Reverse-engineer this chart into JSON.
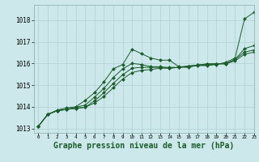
{
  "background_color": "#cce8ea",
  "plot_bg_color": "#cce8ea",
  "grid_color": "#b0d0d2",
  "line_color": "#1a5c2a",
  "xlabel": "Graphe pression niveau de la mer (hPa)",
  "xlabel_fontsize": 7,
  "ylim": [
    1012.8,
    1018.7
  ],
  "xlim": [
    -0.5,
    23
  ],
  "yticks": [
    1013,
    1014,
    1015,
    1016,
    1017,
    1018
  ],
  "xticks": [
    0,
    1,
    2,
    3,
    4,
    5,
    6,
    7,
    8,
    9,
    10,
    11,
    12,
    13,
    14,
    15,
    16,
    17,
    18,
    19,
    20,
    21,
    22,
    23
  ],
  "series": [
    [
      1013.1,
      1013.65,
      1013.85,
      1013.95,
      1014.0,
      1014.3,
      1014.65,
      1015.15,
      1015.75,
      1015.95,
      1016.65,
      1016.45,
      1016.25,
      1016.15,
      1016.15,
      1015.85,
      1015.85,
      1015.9,
      1015.9,
      1015.95,
      1016.05,
      1016.25,
      1018.05,
      1018.35
    ],
    [
      1013.1,
      1013.65,
      1013.82,
      1013.88,
      1013.98,
      1014.08,
      1014.45,
      1014.85,
      1015.35,
      1015.75,
      1016.0,
      1015.95,
      1015.85,
      1015.85,
      1015.78,
      1015.82,
      1015.82,
      1015.92,
      1015.92,
      1015.98,
      1016.0,
      1016.18,
      1016.68,
      1016.82
    ],
    [
      1013.1,
      1013.65,
      1013.82,
      1013.88,
      1013.93,
      1013.98,
      1014.28,
      1014.65,
      1015.08,
      1015.48,
      1015.78,
      1015.82,
      1015.82,
      1015.82,
      1015.82,
      1015.82,
      1015.88,
      1015.92,
      1015.98,
      1015.98,
      1015.98,
      1016.18,
      1016.52,
      1016.62
    ],
    [
      1013.1,
      1013.65,
      1013.82,
      1013.88,
      1013.93,
      1013.98,
      1014.18,
      1014.48,
      1014.88,
      1015.28,
      1015.58,
      1015.68,
      1015.72,
      1015.78,
      1015.78,
      1015.82,
      1015.88,
      1015.92,
      1015.98,
      1015.98,
      1015.98,
      1016.12,
      1016.42,
      1016.52
    ]
  ]
}
